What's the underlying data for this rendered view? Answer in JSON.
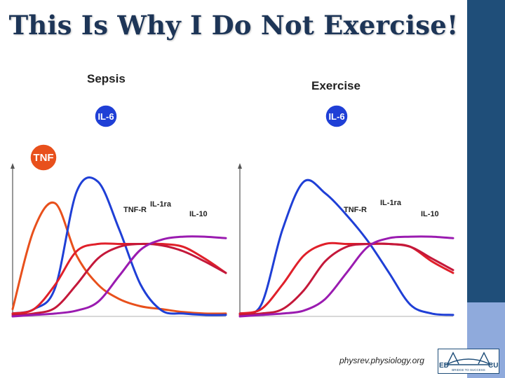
{
  "slide": {
    "title": "This Is Why I Do Not Exercise!",
    "source": "physrev.physiology.org",
    "logo_left_text": "ED",
    "logo_right_text": "CU",
    "logo_tagline": "BRIDGE TO SUCCESS"
  },
  "colors": {
    "title": "#1d3557",
    "sidebar_dark": "#1f4e79",
    "sidebar_light": "#8faadc",
    "tnf": "#e8501c",
    "il6": "#1f3fd6",
    "tnf_r": "#e0202a",
    "il_1ra": "#c4183a",
    "il_10": "#9a1bb0"
  },
  "chart_data": [
    {
      "type": "line",
      "title": "Sepsis",
      "xlabel": "",
      "ylabel": "",
      "x": [
        0,
        1,
        2,
        3,
        4,
        5,
        6,
        7,
        8,
        9,
        10
      ],
      "ylim": [
        0,
        1
      ],
      "grid": false,
      "series": [
        {
          "name": "TNF",
          "values": [
            0.05,
            0.6,
            0.78,
            0.42,
            0.22,
            0.12,
            0.07,
            0.05,
            0.03,
            0.02,
            0.02
          ]
        },
        {
          "name": "IL-6",
          "values": [
            0.02,
            0.05,
            0.2,
            0.86,
            0.93,
            0.6,
            0.22,
            0.04,
            0.02,
            0.01,
            0.01
          ]
        },
        {
          "name": "TNF-R",
          "values": [
            0.02,
            0.05,
            0.22,
            0.45,
            0.5,
            0.5,
            0.5,
            0.5,
            0.48,
            0.4,
            0.3
          ]
        },
        {
          "name": "IL-1ra",
          "values": [
            0.01,
            0.02,
            0.06,
            0.22,
            0.4,
            0.48,
            0.5,
            0.49,
            0.45,
            0.38,
            0.3
          ]
        },
        {
          "name": "IL-10",
          "values": [
            0.0,
            0.01,
            0.02,
            0.04,
            0.1,
            0.28,
            0.46,
            0.53,
            0.55,
            0.55,
            0.54
          ]
        }
      ],
      "annotations": [
        "TNF",
        "IL-6",
        "TNF-R",
        "IL-1ra",
        "IL-10"
      ]
    },
    {
      "type": "line",
      "title": "Exercise",
      "xlabel": "",
      "ylabel": "",
      "x": [
        0,
        1,
        2,
        3,
        4,
        5,
        6,
        7,
        8,
        9,
        10
      ],
      "ylim": [
        0,
        1
      ],
      "grid": false,
      "series": [
        {
          "name": "IL-6",
          "values": [
            0.02,
            0.08,
            0.6,
            0.93,
            0.85,
            0.7,
            0.52,
            0.3,
            0.08,
            0.02,
            0.01
          ]
        },
        {
          "name": "TNF-R",
          "values": [
            0.02,
            0.05,
            0.22,
            0.42,
            0.5,
            0.5,
            0.5,
            0.5,
            0.48,
            0.38,
            0.3
          ]
        },
        {
          "name": "IL-1ra",
          "values": [
            0.01,
            0.02,
            0.05,
            0.18,
            0.38,
            0.48,
            0.5,
            0.5,
            0.48,
            0.4,
            0.32
          ]
        },
        {
          "name": "IL-10",
          "values": [
            0.0,
            0.01,
            0.02,
            0.04,
            0.12,
            0.3,
            0.48,
            0.54,
            0.55,
            0.55,
            0.54
          ]
        }
      ],
      "annotations": [
        "IL-6",
        "TNF-R",
        "IL-1ra",
        "IL-10"
      ]
    }
  ]
}
